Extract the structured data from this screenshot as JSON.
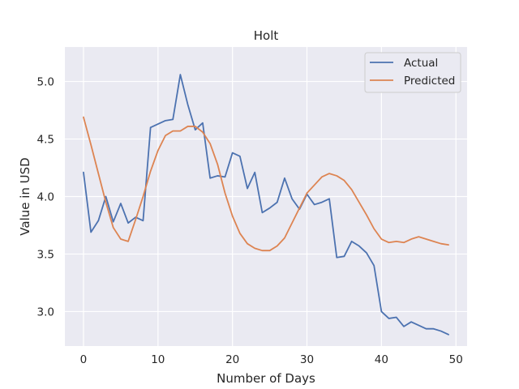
{
  "chart_data": {
    "type": "line",
    "title": "Holt",
    "xlabel": "Number of Days",
    "ylabel": "Value in USD",
    "xlim": [
      -2.5,
      51.5
    ],
    "ylim": [
      2.7,
      5.3
    ],
    "xticks": [
      0,
      10,
      20,
      30,
      40,
      50
    ],
    "yticks": [
      3.0,
      3.5,
      4.0,
      4.5,
      5.0
    ],
    "ytick_labels": [
      "3.0",
      "3.5",
      "4.0",
      "4.5",
      "5.0"
    ],
    "grid": true,
    "background": "#eaeaf2",
    "legend_position": "top-right",
    "x": [
      0,
      1,
      2,
      3,
      4,
      5,
      6,
      7,
      8,
      9,
      10,
      11,
      12,
      13,
      14,
      15,
      16,
      17,
      18,
      19,
      20,
      21,
      22,
      23,
      24,
      25,
      26,
      27,
      28,
      29,
      30,
      31,
      32,
      33,
      34,
      35,
      36,
      37,
      38,
      39,
      40,
      41,
      42,
      43,
      44,
      45,
      46,
      47,
      48,
      49
    ],
    "series": [
      {
        "name": "Actual",
        "color": "#4c72b0",
        "values": [
          4.21,
          3.69,
          3.79,
          4.0,
          3.78,
          3.94,
          3.77,
          3.82,
          3.79,
          4.6,
          4.63,
          4.66,
          4.67,
          5.06,
          4.8,
          4.58,
          4.64,
          4.16,
          4.18,
          4.17,
          4.38,
          4.35,
          4.07,
          4.21,
          3.86,
          3.9,
          3.95,
          4.16,
          3.98,
          3.89,
          4.02,
          3.93,
          3.95,
          3.98,
          3.47,
          3.48,
          3.61,
          3.57,
          3.51,
          3.4,
          3.0,
          2.94,
          2.95,
          2.87,
          2.91,
          2.88,
          2.85,
          2.85,
          2.83,
          2.8
        ]
      },
      {
        "name": "Predicted",
        "color": "#dd8452",
        "values": [
          4.69,
          4.45,
          4.2,
          3.95,
          3.73,
          3.63,
          3.61,
          3.8,
          4.0,
          4.22,
          4.4,
          4.53,
          4.57,
          4.57,
          4.61,
          4.61,
          4.56,
          4.46,
          4.28,
          4.03,
          3.83,
          3.68,
          3.59,
          3.55,
          3.53,
          3.53,
          3.57,
          3.64,
          3.77,
          3.9,
          4.03,
          4.1,
          4.17,
          4.2,
          4.18,
          4.14,
          4.06,
          3.95,
          3.84,
          3.72,
          3.63,
          3.6,
          3.61,
          3.6,
          3.63,
          3.65,
          3.63,
          3.61,
          3.59,
          3.58
        ]
      }
    ]
  }
}
